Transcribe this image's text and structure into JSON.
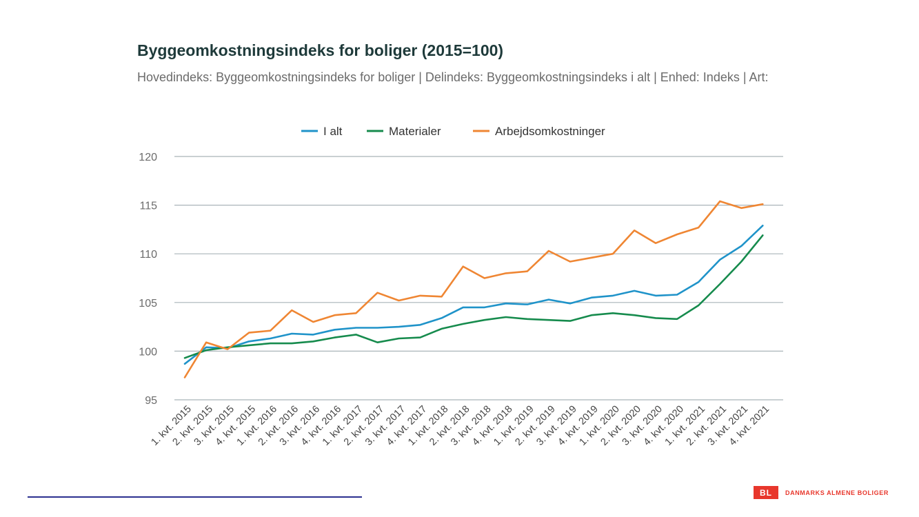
{
  "header": {
    "title": "Byggeomkostningsindeks for boliger (2015=100)",
    "subtitle": "Hovedindeks: Byggeomkostningsindeks for boliger | Delindeks: Byggeomkostningsindeks i alt | Enhed: Indeks | Art:"
  },
  "footer": {
    "logo_mark": "BL",
    "logo_text": "DANMARKS ALMENE BOLIGER",
    "logo_color": "#e8372c",
    "line_color": "#2b2f8f"
  },
  "chart_data": {
    "type": "line",
    "title": "Byggeomkostningsindeks for boliger (2015=100)",
    "xlabel": "",
    "ylabel": "",
    "ylim": [
      95,
      120
    ],
    "yticks": [
      95,
      100,
      105,
      110,
      115,
      120
    ],
    "grid": true,
    "legend": "top-center",
    "categories": [
      "1. kvt. 2015",
      "2. kvt. 2015",
      "3. kvt. 2015",
      "4. kvt. 2015",
      "1. kvt. 2016",
      "2. kvt. 2016",
      "3. kvt. 2016",
      "4. kvt. 2016",
      "1. kvt. 2017",
      "2. kvt. 2017",
      "3. kvt. 2017",
      "4. kvt. 2017",
      "1. kvt. 2018",
      "2. kvt. 2018",
      "3. kvt. 2018",
      "4. kvt. 2018",
      "1. kvt. 2019",
      "2. kvt. 2019",
      "3. kvt. 2019",
      "4. kvt. 2019",
      "1. kvt. 2020",
      "2. kvt. 2020",
      "3. kvt. 2020",
      "4. kvt. 2020",
      "1. kvt. 2021",
      "2. kvt. 2021",
      "3. kvt. 2021",
      "4. kvt. 2021"
    ],
    "series": [
      {
        "name": "I alt",
        "color": "#1f93c9",
        "values": [
          98.7,
          100.4,
          100.3,
          101.0,
          101.3,
          101.8,
          101.7,
          102.2,
          102.4,
          102.4,
          102.5,
          102.7,
          103.4,
          104.5,
          104.5,
          104.9,
          104.8,
          105.3,
          104.9,
          105.5,
          105.7,
          106.2,
          105.7,
          105.8,
          107.1,
          109.4,
          110.8,
          112.9
        ]
      },
      {
        "name": "Materialer",
        "color": "#168b4d",
        "values": [
          99.3,
          100.1,
          100.4,
          100.6,
          100.8,
          100.8,
          101.0,
          101.4,
          101.7,
          100.9,
          101.3,
          101.4,
          102.3,
          102.8,
          103.2,
          103.5,
          103.3,
          103.2,
          103.1,
          103.7,
          103.9,
          103.7,
          103.4,
          103.3,
          104.7,
          106.9,
          109.2,
          111.9
        ]
      },
      {
        "name": "Arbejdsomkostninger",
        "color": "#ef8633",
        "values": [
          97.3,
          100.9,
          100.2,
          101.9,
          102.1,
          104.2,
          103.0,
          103.7,
          103.9,
          106.0,
          105.2,
          105.7,
          105.6,
          108.7,
          107.5,
          108.0,
          108.2,
          110.3,
          109.2,
          109.6,
          110.0,
          112.4,
          111.1,
          112.0,
          112.7,
          115.4,
          114.7,
          115.1
        ]
      }
    ]
  }
}
